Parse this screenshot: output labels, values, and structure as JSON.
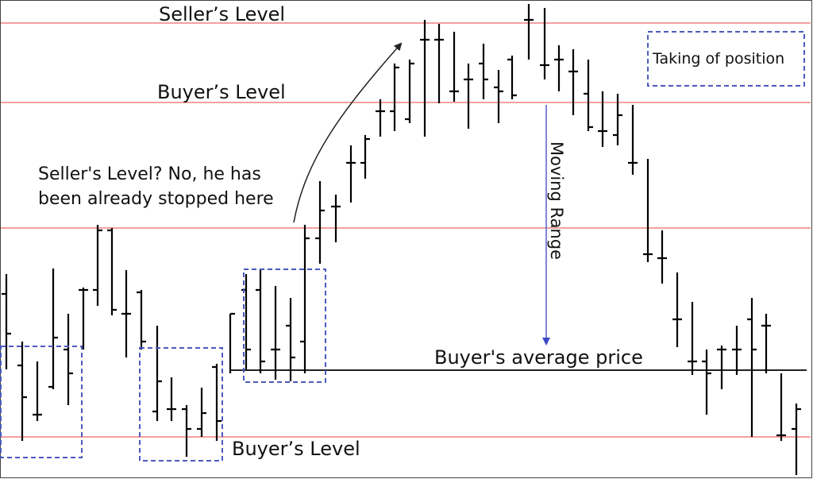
{
  "annotations": {
    "seller_level_top": "Seller’s Level",
    "buyer_level_upper": "Buyer’s Level",
    "question_line1": "Seller's Level? No, he has",
    "question_line2": "been already stopped here",
    "taking_position": "Taking of position",
    "moving_range": "Moving Range",
    "buyer_average_price": "Buyer's average price",
    "buyer_level_lower": "Buyer’s Level"
  }
}
